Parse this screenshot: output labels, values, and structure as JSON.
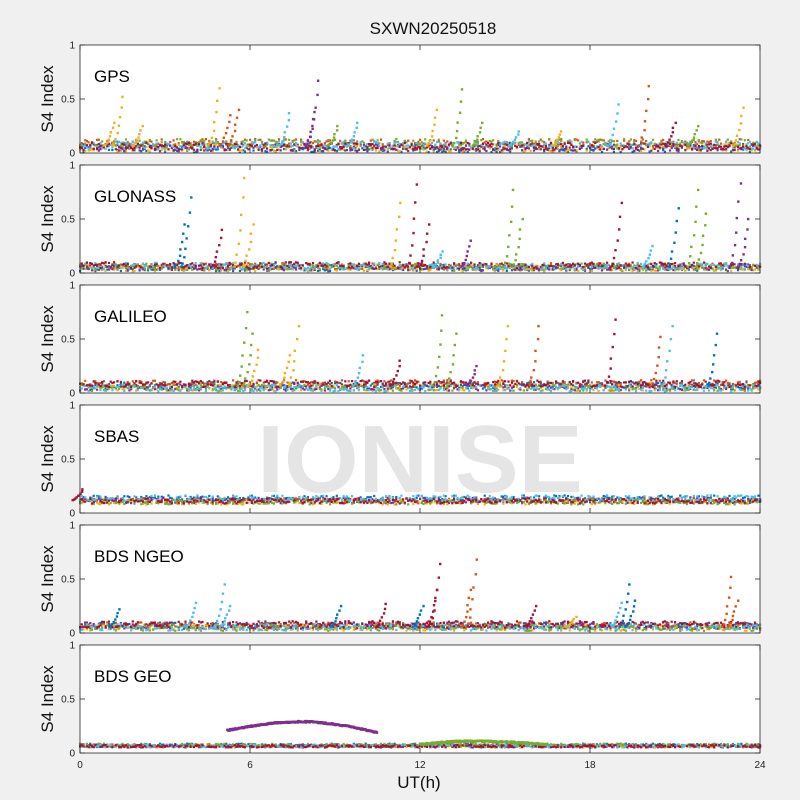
{
  "figure": {
    "title": "SXWN20250518",
    "watermark": "IONISE",
    "xlabel": "UT(h)",
    "ylabel": "S4 Index"
  },
  "chart_data": {
    "type": "scatter",
    "xlim": [
      0,
      24
    ],
    "ylim": [
      0,
      1
    ],
    "x_ticks": [
      0,
      6,
      12,
      18,
      24
    ],
    "y_ticks": [
      0,
      0.5,
      1
    ],
    "y_tick_labels": [
      "0",
      "0.5",
      "1"
    ],
    "grid": false,
    "colors": [
      "#0072BD",
      "#D95319",
      "#EDB120",
      "#7E2F8E",
      "#77AC30",
      "#4DBEEE",
      "#A2142F"
    ],
    "panels": [
      {
        "label": "GPS",
        "baseline": 0.07,
        "noise": 0.035,
        "spikes": [
          {
            "x": 1.2,
            "y": 0.28,
            "c": 2
          },
          {
            "x": 1.5,
            "y": 0.52,
            "c": 2
          },
          {
            "x": 2.2,
            "y": 0.25,
            "c": 2
          },
          {
            "x": 4.9,
            "y": 0.6,
            "c": 2
          },
          {
            "x": 5.3,
            "y": 0.35,
            "c": 1
          },
          {
            "x": 5.6,
            "y": 0.4,
            "c": 1
          },
          {
            "x": 7.4,
            "y": 0.37,
            "c": 5
          },
          {
            "x": 8.3,
            "y": 0.38,
            "c": 3
          },
          {
            "x": 8.4,
            "y": 0.67,
            "c": 3
          },
          {
            "x": 9.1,
            "y": 0.25,
            "c": 4
          },
          {
            "x": 9.8,
            "y": 0.28,
            "c": 5
          },
          {
            "x": 12.6,
            "y": 0.4,
            "c": 2
          },
          {
            "x": 13.5,
            "y": 0.59,
            "c": 4
          },
          {
            "x": 14.2,
            "y": 0.28,
            "c": 4
          },
          {
            "x": 15.5,
            "y": 0.2,
            "c": 5
          },
          {
            "x": 17.0,
            "y": 0.2,
            "c": 2
          },
          {
            "x": 19.0,
            "y": 0.45,
            "c": 5
          },
          {
            "x": 20.1,
            "y": 0.62,
            "c": 1
          },
          {
            "x": 21.0,
            "y": 0.28,
            "c": 6
          },
          {
            "x": 21.8,
            "y": 0.25,
            "c": 4
          },
          {
            "x": 23.4,
            "y": 0.42,
            "c": 2
          }
        ]
      },
      {
        "label": "GLONASS",
        "baseline": 0.06,
        "noise": 0.03,
        "spikes": [
          {
            "x": 3.9,
            "y": 0.7,
            "c": 0
          },
          {
            "x": 3.7,
            "y": 0.45,
            "c": 0
          },
          {
            "x": 5.0,
            "y": 0.4,
            "c": 6
          },
          {
            "x": 5.8,
            "y": 0.88,
            "c": 2
          },
          {
            "x": 6.1,
            "y": 0.45,
            "c": 2
          },
          {
            "x": 11.3,
            "y": 0.65,
            "c": 2
          },
          {
            "x": 11.9,
            "y": 0.82,
            "c": 6
          },
          {
            "x": 12.3,
            "y": 0.45,
            "c": 6
          },
          {
            "x": 13.8,
            "y": 0.3,
            "c": 3
          },
          {
            "x": 15.3,
            "y": 0.77,
            "c": 4
          },
          {
            "x": 15.6,
            "y": 0.5,
            "c": 4
          },
          {
            "x": 19.1,
            "y": 0.65,
            "c": 6
          },
          {
            "x": 21.1,
            "y": 0.6,
            "c": 0
          },
          {
            "x": 21.8,
            "y": 0.77,
            "c": 4
          },
          {
            "x": 22.1,
            "y": 0.55,
            "c": 4
          },
          {
            "x": 23.3,
            "y": 0.83,
            "c": 3
          },
          {
            "x": 23.6,
            "y": 0.5,
            "c": 3
          },
          {
            "x": 20.2,
            "y": 0.25,
            "c": 5
          },
          {
            "x": 12.8,
            "y": 0.2,
            "c": 5
          }
        ]
      },
      {
        "label": "GALILEO",
        "baseline": 0.07,
        "noise": 0.03,
        "spikes": [
          {
            "x": 5.9,
            "y": 0.75,
            "c": 4
          },
          {
            "x": 6.1,
            "y": 0.55,
            "c": 4
          },
          {
            "x": 6.3,
            "y": 0.4,
            "c": 2
          },
          {
            "x": 7.7,
            "y": 0.62,
            "c": 2
          },
          {
            "x": 7.4,
            "y": 0.35,
            "c": 2
          },
          {
            "x": 10.0,
            "y": 0.35,
            "c": 5
          },
          {
            "x": 11.3,
            "y": 0.3,
            "c": 6
          },
          {
            "x": 12.8,
            "y": 0.72,
            "c": 4
          },
          {
            "x": 13.3,
            "y": 0.55,
            "c": 4
          },
          {
            "x": 15.1,
            "y": 0.62,
            "c": 2
          },
          {
            "x": 16.2,
            "y": 0.62,
            "c": 1
          },
          {
            "x": 18.9,
            "y": 0.68,
            "c": 6
          },
          {
            "x": 20.5,
            "y": 0.52,
            "c": 1
          },
          {
            "x": 20.9,
            "y": 0.62,
            "c": 5
          },
          {
            "x": 22.5,
            "y": 0.55,
            "c": 0
          },
          {
            "x": 14.0,
            "y": 0.25,
            "c": 3
          }
        ]
      },
      {
        "label": "SBAS",
        "baseline": 0.12,
        "noise": 0.025,
        "spikes": [
          {
            "x": 0.1,
            "y": 0.22,
            "c": 6
          }
        ]
      },
      {
        "label": "BDS NGEO",
        "baseline": 0.06,
        "noise": 0.03,
        "spikes": [
          {
            "x": 1.4,
            "y": 0.22,
            "c": 0
          },
          {
            "x": 4.1,
            "y": 0.28,
            "c": 5
          },
          {
            "x": 5.1,
            "y": 0.45,
            "c": 5
          },
          {
            "x": 5.3,
            "y": 0.25,
            "c": 5
          },
          {
            "x": 9.2,
            "y": 0.25,
            "c": 0
          },
          {
            "x": 10.8,
            "y": 0.27,
            "c": 6
          },
          {
            "x": 12.1,
            "y": 0.25,
            "c": 0
          },
          {
            "x": 12.6,
            "y": 0.4,
            "c": 6
          },
          {
            "x": 12.7,
            "y": 0.64,
            "c": 6
          },
          {
            "x": 14.0,
            "y": 0.68,
            "c": 1
          },
          {
            "x": 13.8,
            "y": 0.4,
            "c": 1
          },
          {
            "x": 16.1,
            "y": 0.25,
            "c": 6
          },
          {
            "x": 19.1,
            "y": 0.28,
            "c": 5
          },
          {
            "x": 19.4,
            "y": 0.45,
            "c": 0
          },
          {
            "x": 19.6,
            "y": 0.3,
            "c": 0
          },
          {
            "x": 23.0,
            "y": 0.52,
            "c": 1
          },
          {
            "x": 23.2,
            "y": 0.3,
            "c": 1
          },
          {
            "x": 17.5,
            "y": 0.15,
            "c": 2
          }
        ]
      },
      {
        "label": "BDS GEO",
        "baseline": 0.07,
        "noise": 0.012,
        "spikes": [],
        "arcs": [
          {
            "x0": 5.2,
            "x1": 10.5,
            "peak_x": 7.8,
            "y0": 0.21,
            "peak_y": 0.29,
            "y1": 0.19,
            "c": 3
          },
          {
            "x0": 12.0,
            "x1": 16.5,
            "peak_x": 13.8,
            "y0": 0.08,
            "peak_y": 0.11,
            "y1": 0.08,
            "c": 4
          }
        ]
      }
    ]
  }
}
